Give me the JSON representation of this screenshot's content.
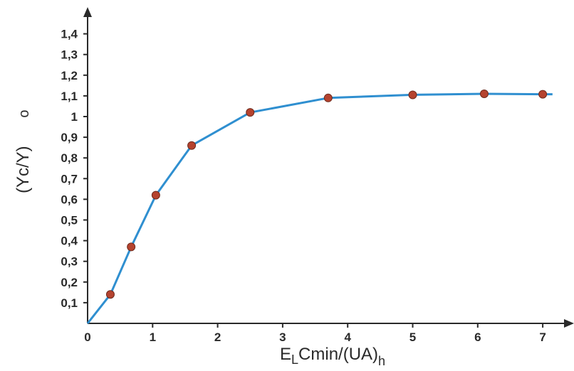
{
  "chart_data": {
    "type": "line",
    "title": "",
    "xlabel": {
      "main": "E",
      "sub1": "L",
      "mid": "Cmin/(UA)",
      "sub2": "h"
    },
    "ylabel": {
      "main": "(Yc/Y)",
      "suffix": "o"
    },
    "xlim": [
      0,
      7.3
    ],
    "ylim": [
      0,
      1.47
    ],
    "x_ticks": [
      "0",
      "1",
      "2",
      "3",
      "4",
      "5",
      "6",
      "7"
    ],
    "y_ticks": [
      "0,1",
      "0,2",
      "0,3",
      "0,4",
      "0,5",
      "0,6",
      "0,7",
      "0,8",
      "0,9",
      "1",
      "1,1",
      "1,2",
      "1,3",
      "1,4"
    ],
    "grid": false,
    "series": [
      {
        "x": [
          0,
          0.35,
          0.67,
          1.05,
          1.6,
          2.5,
          3.7,
          5.0,
          6.1,
          7.0,
          7.15
        ],
        "y": [
          0,
          0.14,
          0.37,
          0.62,
          0.86,
          1.02,
          1.09,
          1.105,
          1.11,
          1.108,
          1.108
        ],
        "markers": [
          false,
          true,
          true,
          true,
          true,
          true,
          true,
          true,
          true,
          true,
          false
        ]
      }
    ],
    "colors": {
      "line": "#2f8fd0",
      "marker_fill": "#b5432f",
      "axis": "#2a2a2a"
    }
  }
}
